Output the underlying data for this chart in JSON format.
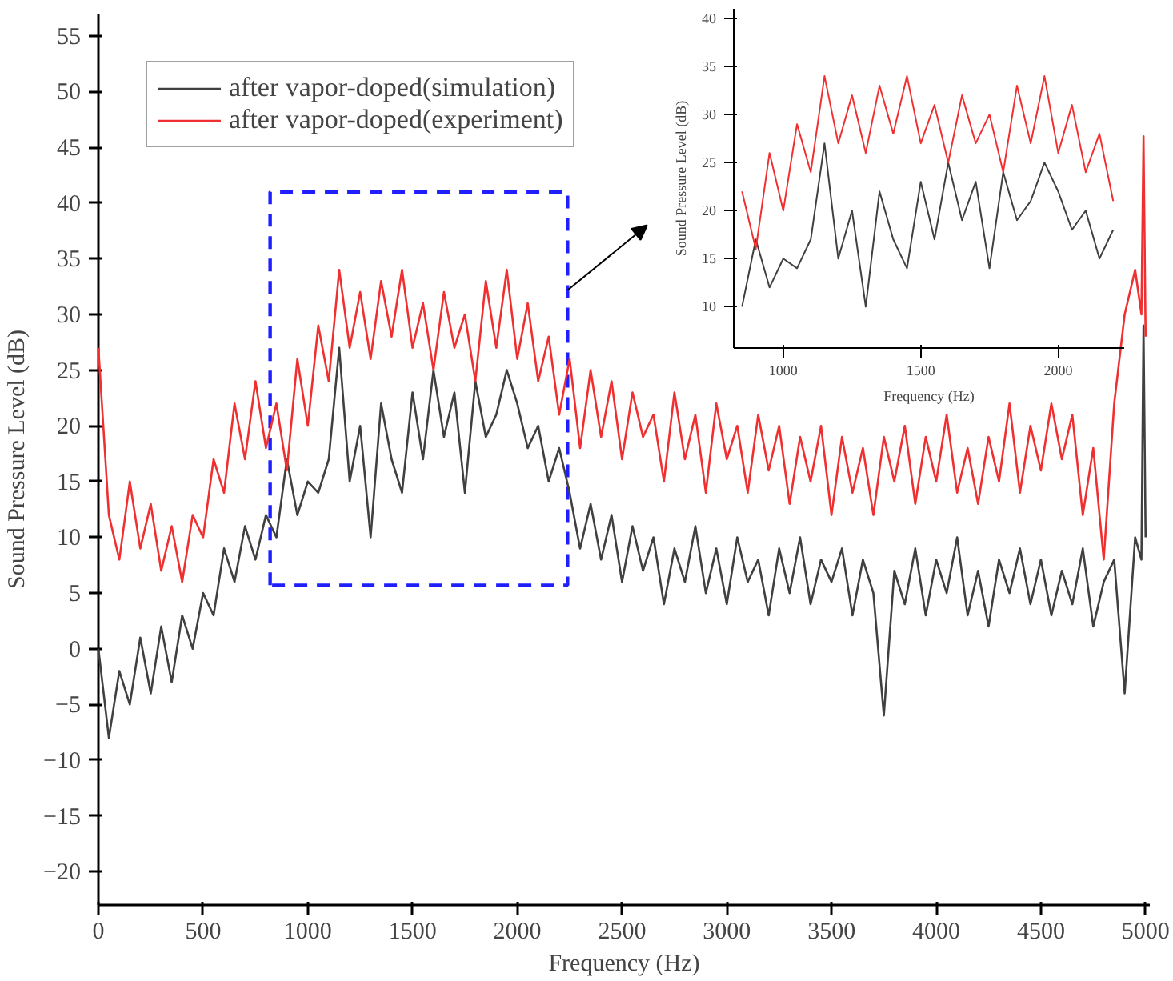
{
  "chart_data": [
    {
      "type": "line",
      "xlabel": "Frequency (Hz)",
      "ylabel": "Sound Pressure Level (dB)",
      "xlim": [
        0,
        5020
      ],
      "ylim": [
        -23,
        57
      ],
      "xticks": [
        0,
        500,
        1000,
        1500,
        2000,
        2500,
        3000,
        3500,
        4000,
        4500,
        5000
      ],
      "yticks": [
        -20,
        -15,
        -10,
        -5,
        0,
        5,
        10,
        15,
        20,
        25,
        30,
        35,
        40,
        45,
        50,
        55
      ],
      "grid": false,
      "legend": "top left",
      "line_style": "solid",
      "marker": "none",
      "x": [
        0,
        50,
        100,
        150,
        200,
        250,
        300,
        350,
        400,
        450,
        500,
        550,
        600,
        650,
        700,
        750,
        800,
        850,
        900,
        950,
        1000,
        1050,
        1100,
        1150,
        1200,
        1250,
        1300,
        1350,
        1400,
        1450,
        1500,
        1550,
        1600,
        1650,
        1700,
        1750,
        1800,
        1850,
        1900,
        1950,
        2000,
        2050,
        2100,
        2150,
        2200,
        2250,
        2300,
        2350,
        2400,
        2450,
        2500,
        2550,
        2600,
        2650,
        2700,
        2750,
        2800,
        2850,
        2900,
        2950,
        3000,
        3050,
        3100,
        3150,
        3200,
        3250,
        3300,
        3350,
        3400,
        3450,
        3500,
        3550,
        3600,
        3650,
        3700,
        3750,
        3800,
        3850,
        3900,
        3950,
        4000,
        4050,
        4100,
        4150,
        4200,
        4250,
        4300,
        4350,
        4400,
        4450,
        4500,
        4550,
        4600,
        4650,
        4700,
        4750,
        4800,
        4850,
        4900,
        4950,
        4980,
        4990,
        5000
      ],
      "series": [
        {
          "name": "after vapor-doped(simulation)",
          "color": "#404040",
          "values": [
            0,
            -8,
            -2,
            -5,
            1,
            -4,
            2,
            -3,
            3,
            0,
            5,
            3,
            9,
            6,
            11,
            8,
            12,
            10,
            17,
            12,
            15,
            14,
            17,
            27,
            15,
            20,
            10,
            22,
            17,
            14,
            23,
            17,
            25,
            19,
            23,
            14,
            24,
            19,
            21,
            25,
            22,
            18,
            20,
            15,
            18,
            14,
            9,
            13,
            8,
            12,
            6,
            11,
            7,
            10,
            4,
            9,
            6,
            11,
            5,
            9,
            4,
            10,
            6,
            8,
            3,
            9,
            5,
            10,
            4,
            8,
            6,
            9,
            3,
            8,
            5,
            -6,
            7,
            4,
            9,
            3,
            8,
            5,
            10,
            3,
            7,
            2,
            8,
            5,
            9,
            4,
            8,
            3,
            7,
            4,
            9,
            2,
            6,
            8,
            -4,
            10,
            8,
            29,
            10
          ]
        },
        {
          "name": "after vapor-doped(experiment)",
          "color": "#f03030",
          "values": [
            27,
            12,
            8,
            15,
            9,
            13,
            7,
            11,
            6,
            12,
            10,
            17,
            14,
            22,
            17,
            24,
            18,
            22,
            16,
            26,
            20,
            29,
            24,
            34,
            27,
            32,
            26,
            33,
            28,
            34,
            27,
            31,
            25,
            32,
            27,
            30,
            24,
            33,
            27,
            34,
            26,
            31,
            24,
            28,
            21,
            26,
            18,
            25,
            19,
            24,
            17,
            23,
            19,
            21,
            15,
            23,
            17,
            21,
            14,
            22,
            17,
            20,
            14,
            21,
            16,
            20,
            13,
            19,
            15,
            20,
            12,
            19,
            14,
            18,
            12,
            19,
            15,
            20,
            13,
            19,
            15,
            21,
            14,
            18,
            13,
            19,
            15,
            22,
            14,
            20,
            16,
            22,
            17,
            21,
            12,
            18,
            8,
            22,
            30,
            34,
            30,
            46,
            28
          ]
        }
      ]
    },
    {
      "type": "line",
      "xlabel": "Frequency (Hz)",
      "ylabel": "Sound Pressure Level (dB)",
      "xlim": [
        820,
        2240
      ],
      "ylim": [
        5.7,
        41
      ],
      "xticks": [
        1000,
        1500,
        2000
      ],
      "yticks": [
        10,
        15,
        20,
        25,
        30,
        35,
        40
      ],
      "grid": false,
      "legend": false,
      "line_style": "solid",
      "marker": "none",
      "x": [
        850,
        900,
        950,
        1000,
        1050,
        1100,
        1150,
        1200,
        1250,
        1300,
        1350,
        1400,
        1450,
        1500,
        1550,
        1600,
        1650,
        1700,
        1750,
        1800,
        1850,
        1900,
        1950,
        2000,
        2050,
        2100,
        2150,
        2200
      ],
      "series": [
        {
          "color": "#404040",
          "values": [
            10,
            17,
            12,
            15,
            14,
            17,
            27,
            15,
            20,
            10,
            22,
            17,
            14,
            23,
            17,
            25,
            19,
            23,
            14,
            24,
            19,
            21,
            25,
            22,
            18,
            20,
            15,
            18
          ]
        },
        {
          "color": "#f03030",
          "values": [
            22,
            16,
            26,
            20,
            29,
            24,
            34,
            27,
            32,
            26,
            33,
            28,
            34,
            27,
            31,
            25,
            32,
            27,
            30,
            24,
            33,
            27,
            34,
            26,
            31,
            24,
            28,
            21
          ]
        }
      ]
    }
  ]
}
